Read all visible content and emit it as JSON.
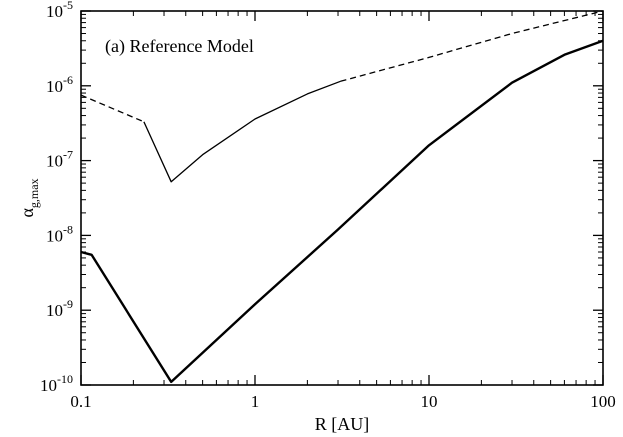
{
  "chart_data": {
    "type": "line",
    "annotation": "(a) Reference Model",
    "xlabel": "R [AU]",
    "ylabel": {
      "main": "α",
      "sub": "g,max"
    },
    "xscale": "log",
    "yscale": "log",
    "xlim": [
      0.1,
      100
    ],
    "ylim": [
      1e-10,
      1e-05
    ],
    "x_ticks": [
      {
        "value": 0.1,
        "label": "0.1"
      },
      {
        "value": 1,
        "label": "1"
      },
      {
        "value": 10,
        "label": "10"
      },
      {
        "value": 100,
        "label": "100"
      }
    ],
    "y_ticks": [
      {
        "value": 1e-10,
        "base": "10",
        "exp": "-10"
      },
      {
        "value": 1e-09,
        "base": "10",
        "exp": "-9"
      },
      {
        "value": 1e-08,
        "base": "10",
        "exp": "-8"
      },
      {
        "value": 1e-07,
        "base": "10",
        "exp": "-7"
      },
      {
        "value": 1e-06,
        "base": "10",
        "exp": "-6"
      },
      {
        "value": 1e-05,
        "base": "10",
        "exp": "-5"
      }
    ],
    "series": [
      {
        "style": "thick-solid",
        "x": [
          0.1,
          0.115,
          0.33,
          1,
          3,
          10,
          30,
          60,
          100
        ],
        "y": [
          6e-09,
          5.5e-09,
          1.1e-10,
          1.2e-09,
          1.2e-08,
          1.6e-07,
          1.1e-06,
          2.6e-06,
          4e-06
        ]
      },
      {
        "style": "thin-dashed",
        "x": [
          0.1,
          0.23
        ],
        "y": [
          7.5e-07,
          3.3e-07
        ]
      },
      {
        "style": "thin-solid",
        "x": [
          0.23,
          0.33,
          0.5,
          1,
          2,
          3.1
        ],
        "y": [
          3.3e-07,
          5.2e-08,
          1.2e-07,
          3.6e-07,
          7.8e-07,
          1.15e-06
        ]
      },
      {
        "style": "thin-dashed",
        "x": [
          3.1,
          10,
          30,
          100
        ],
        "y": [
          1.15e-06,
          2.4e-06,
          5e-06,
          1e-05
        ]
      }
    ]
  }
}
